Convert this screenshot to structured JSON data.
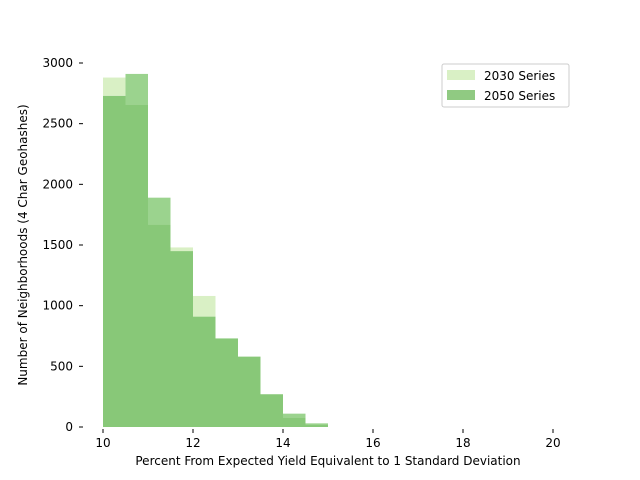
{
  "chart_data": {
    "type": "bar",
    "subtype": "overlaid-histogram",
    "title": "",
    "xlabel": "Percent From Expected Yield Equivalent to 1 Standard Deviation",
    "ylabel": "Number of Neighborhoods (4 Char Geohashes)",
    "xlim": [
      10,
      20
    ],
    "ylim": [
      0,
      3000
    ],
    "xticks": [
      10,
      12,
      14,
      16,
      18,
      20
    ],
    "yticks": [
      0,
      500,
      1000,
      1500,
      2000,
      2500,
      3000
    ],
    "bin_edges": [
      10.0,
      10.5,
      11.0,
      11.5,
      12.0,
      12.5,
      13.0,
      13.5,
      14.0,
      14.5,
      15.0
    ],
    "grid": false,
    "legend_position": "top-right",
    "series": [
      {
        "name": "2030 Series",
        "color": "#d9f0c5",
        "values": [
          2880,
          2660,
          1670,
          1480,
          1080,
          730,
          580,
          270,
          80,
          20
        ]
      },
      {
        "name": "2050 Series",
        "color": "#89c979",
        "overlap_color": "#88c878",
        "values": [
          2730,
          2910,
          1890,
          1450,
          910,
          730,
          580,
          270,
          110,
          30
        ]
      }
    ]
  }
}
